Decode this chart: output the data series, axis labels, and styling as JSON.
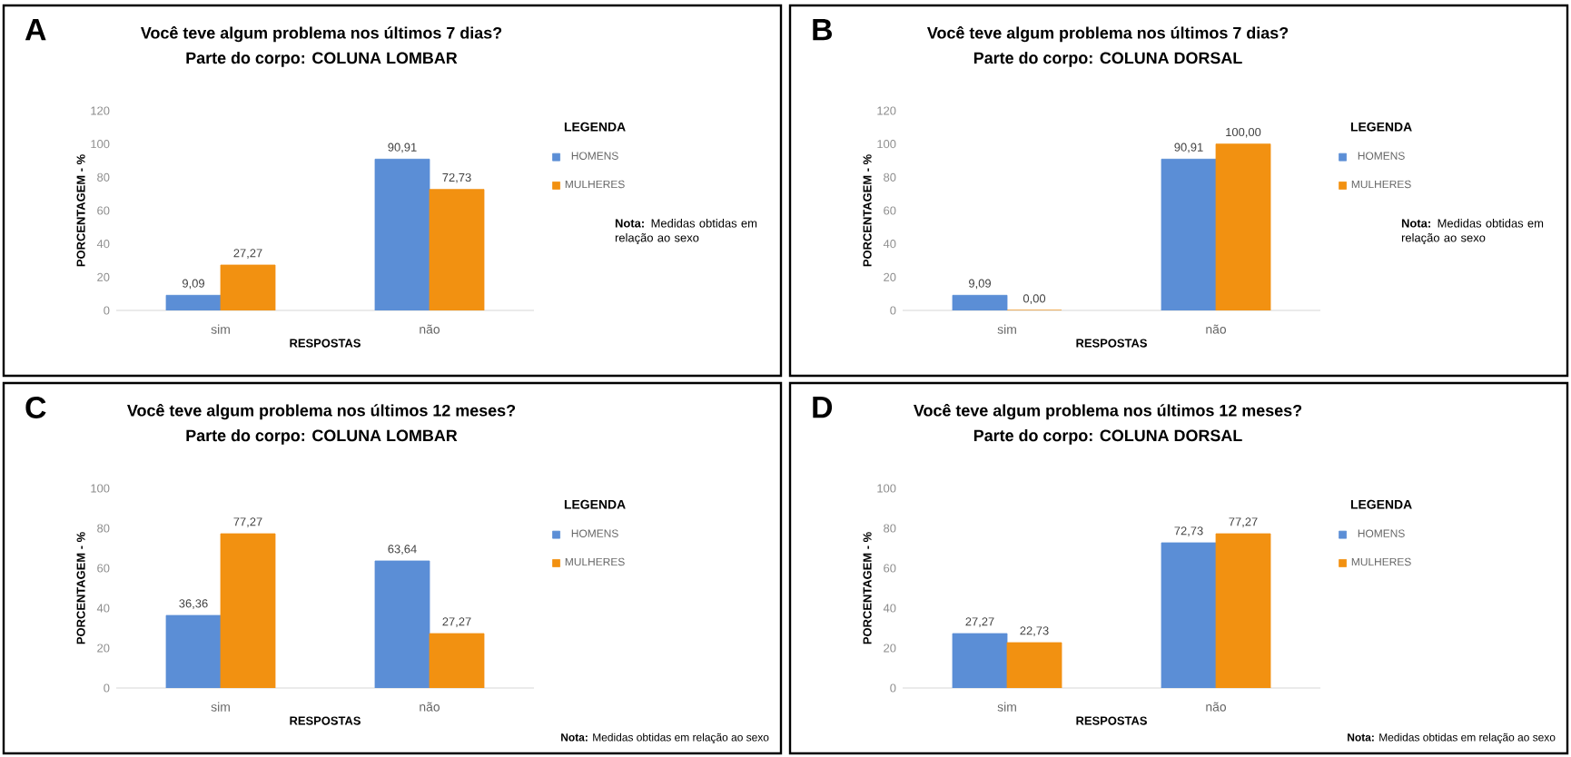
{
  "chart_data": [
    {
      "type": "bar",
      "title": "Você teve algum problema nos últimos 7 dias?",
      "subtitle": "Parte do corpo: COLUNA LOMBAR",
      "xlabel": "RESPOSTAS",
      "ylabel": "PORCENTAGEM - %",
      "categories": [
        "sim",
        "não"
      ],
      "series": [
        {
          "name": "HOMENS",
          "color": "#5b8ed6",
          "values": [
            9.09,
            90.91
          ],
          "value_labels": [
            "9,09",
            "90,91"
          ]
        },
        {
          "name": "MULHERES",
          "color": "#f29111",
          "values": [
            27.27,
            72.73
          ],
          "value_labels": [
            "27,27",
            "72,73"
          ]
        }
      ],
      "ylim": [
        0,
        120
      ],
      "yticks": [
        0,
        20,
        40,
        60,
        80,
        100,
        120
      ],
      "legend": "right",
      "legend_title": "LEGENDA",
      "annotations": [
        "A",
        "**Nota:** Medidas obtidas em relação ao sexo"
      ]
    },
    {
      "type": "bar",
      "title": "Você teve algum problema nos últimos 7 dias?",
      "subtitle": "Parte do corpo: COLUNA DORSAL",
      "xlabel": "RESPOSTAS",
      "ylabel": "PORCENTAGEM - %",
      "categories": [
        "sim",
        "não"
      ],
      "series": [
        {
          "name": "HOMENS",
          "color": "#5b8ed6",
          "values": [
            9.09,
            90.91
          ],
          "value_labels": [
            "9,09",
            "90,91"
          ]
        },
        {
          "name": "MULHERES",
          "color": "#f29111",
          "values": [
            0,
            100
          ],
          "value_labels": [
            "0,00",
            "100,00"
          ]
        }
      ],
      "ylim": [
        0,
        120
      ],
      "yticks": [
        0,
        20,
        40,
        60,
        80,
        100,
        120
      ],
      "legend": "right",
      "legend_title": "LEGENDA",
      "annotations": [
        "B",
        "**Nota:** Medidas obtidas em relação ao sexo"
      ]
    },
    {
      "type": "bar",
      "title": "Você teve algum problema nos últimos 12 meses?",
      "subtitle": "Parte do corpo: COLUNA LOMBAR",
      "xlabel": "RESPOSTAS",
      "ylabel": "PORCENTAGEM - %",
      "categories": [
        "sim",
        "não"
      ],
      "series": [
        {
          "name": "HOMENS",
          "color": "#5b8ed6",
          "values": [
            36.36,
            63.64
          ],
          "value_labels": [
            "36,36",
            "63,64"
          ]
        },
        {
          "name": "MULHERES",
          "color": "#f29111",
          "values": [
            77.27,
            27.27
          ],
          "value_labels": [
            "77,27",
            "27,27"
          ]
        }
      ],
      "ylim": [
        0,
        100
      ],
      "yticks": [
        0,
        20,
        40,
        60,
        80,
        100
      ],
      "legend": "right",
      "legend_title": "LEGENDA",
      "annotations": [
        "C",
        "**Nota:** Medidas obtidas em relação ao sexo"
      ]
    },
    {
      "type": "bar",
      "title": "Você teve algum problema nos últimos 12 meses?",
      "subtitle": "Parte do corpo: COLUNA DORSAL",
      "xlabel": "RESPOSTAS",
      "ylabel": "PORCENTAGEM - %",
      "categories": [
        "sim",
        "não"
      ],
      "series": [
        {
          "name": "HOMENS",
          "color": "#5b8ed6",
          "values": [
            27.27,
            72.73
          ],
          "value_labels": [
            "27,27",
            "72,73"
          ]
        },
        {
          "name": "MULHERES",
          "color": "#f29111",
          "values": [
            22.73,
            77.27
          ],
          "value_labels": [
            "22,73",
            "77,27"
          ]
        }
      ],
      "ylim": [
        0,
        100
      ],
      "yticks": [
        0,
        20,
        40,
        60,
        80,
        100
      ],
      "legend": "right",
      "legend_title": "LEGENDA",
      "annotations": [
        "D",
        "**Nota:** Medidas obtidas em relação ao sexo"
      ]
    }
  ]
}
